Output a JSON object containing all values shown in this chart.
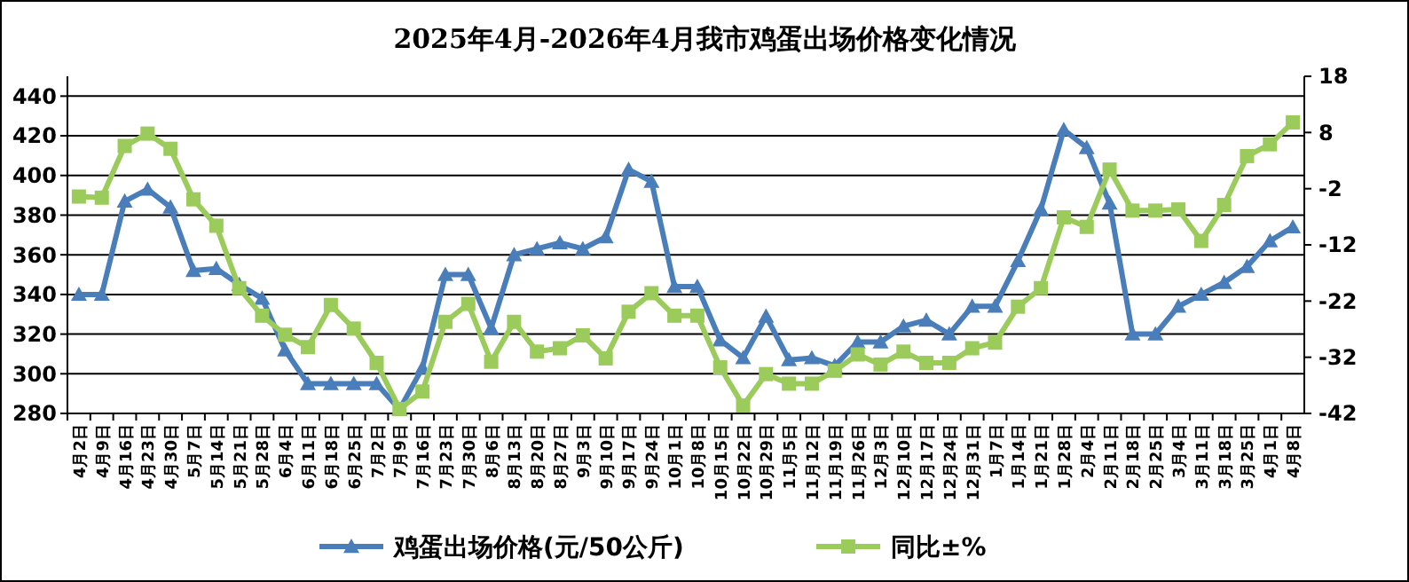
{
  "chart_data": {
    "type": "line",
    "title": "2025年4月-2026年4月我市鸡蛋出场价格变化情况",
    "categories": [
      "4月2日",
      "4月9日",
      "4月16日",
      "4月23日",
      "4月30日",
      "5月7日",
      "5月14日",
      "5月21日",
      "5月28日",
      "6月4日",
      "6月11日",
      "6月18日",
      "6月25日",
      "7月2日",
      "7月9日",
      "7月16日",
      "7月23日",
      "7月30日",
      "8月6日",
      "8月13日",
      "8月20日",
      "8月27日",
      "9月3日",
      "9月10日",
      "9月17日",
      "9月24日",
      "10月1日",
      "10月8日",
      "10月15日",
      "10月22日",
      "10月29日",
      "11月5日",
      "11月12日",
      "11月19日",
      "11月26日",
      "12月3日",
      "12月10日",
      "12月17日",
      "12月24日",
      "12月31日",
      "1月7日",
      "1月14日",
      "1月21日",
      "1月28日",
      "2月4日",
      "2月11日",
      "2月18日",
      "2月25日",
      "3月4日",
      "3月11日",
      "3月18日",
      "3月25日",
      "4月1日",
      "4月8日"
    ],
    "series": [
      {
        "name": "鸡蛋出场价格(元/50公斤)",
        "color": "#4a7ebb",
        "marker": "triangle",
        "values": [
          340,
          340,
          387,
          393,
          384,
          352,
          353,
          345,
          338,
          312,
          295,
          295,
          295,
          295,
          282,
          303,
          350,
          350,
          323,
          360,
          363,
          366,
          363,
          369,
          403,
          397,
          344,
          344,
          317,
          308,
          329,
          307,
          308,
          304,
          316,
          316,
          324,
          327,
          320,
          334,
          334,
          357,
          383,
          423,
          414,
          386,
          320,
          320,
          334,
          340,
          346,
          354,
          367,
          374
        ]
      },
      {
        "name": "同比±%",
        "color": "#9bcb5b",
        "marker": "square",
        "axis": "y2",
        "values": [
          -3.4,
          -3.6,
          5.6,
          7.8,
          5.1,
          -3.9,
          -8.6,
          -19.7,
          -24.6,
          -28,
          -30.2,
          -22.7,
          -26.9,
          -33,
          -41.2,
          -38.1,
          -25.7,
          -22.5,
          -32.8,
          -25.7,
          -31,
          -30.4,
          -28.1,
          -32.2,
          -23.9,
          -20.6,
          -24.6,
          -24.6,
          -33.8,
          -40.6,
          -35,
          -36.7,
          -36.7,
          -34.4,
          -31.5,
          -33.3,
          -31,
          -33,
          -33,
          -30.4,
          -29.4,
          -23,
          -19.7,
          -7.1,
          -8.8,
          1.4,
          -5.9,
          -5.9,
          -5.7,
          -11.3,
          -4.9,
          3.8,
          5.9,
          9.8
        ]
      }
    ],
    "ylim": [
      280,
      450
    ],
    "yticks": [
      280,
      300,
      320,
      340,
      360,
      380,
      400,
      420,
      440
    ],
    "y2lim": [
      -42,
      18
    ],
    "y2ticks": [
      -42,
      -32,
      -22,
      -12,
      -2,
      8,
      18
    ],
    "grid": "y",
    "legend": "bottom"
  }
}
